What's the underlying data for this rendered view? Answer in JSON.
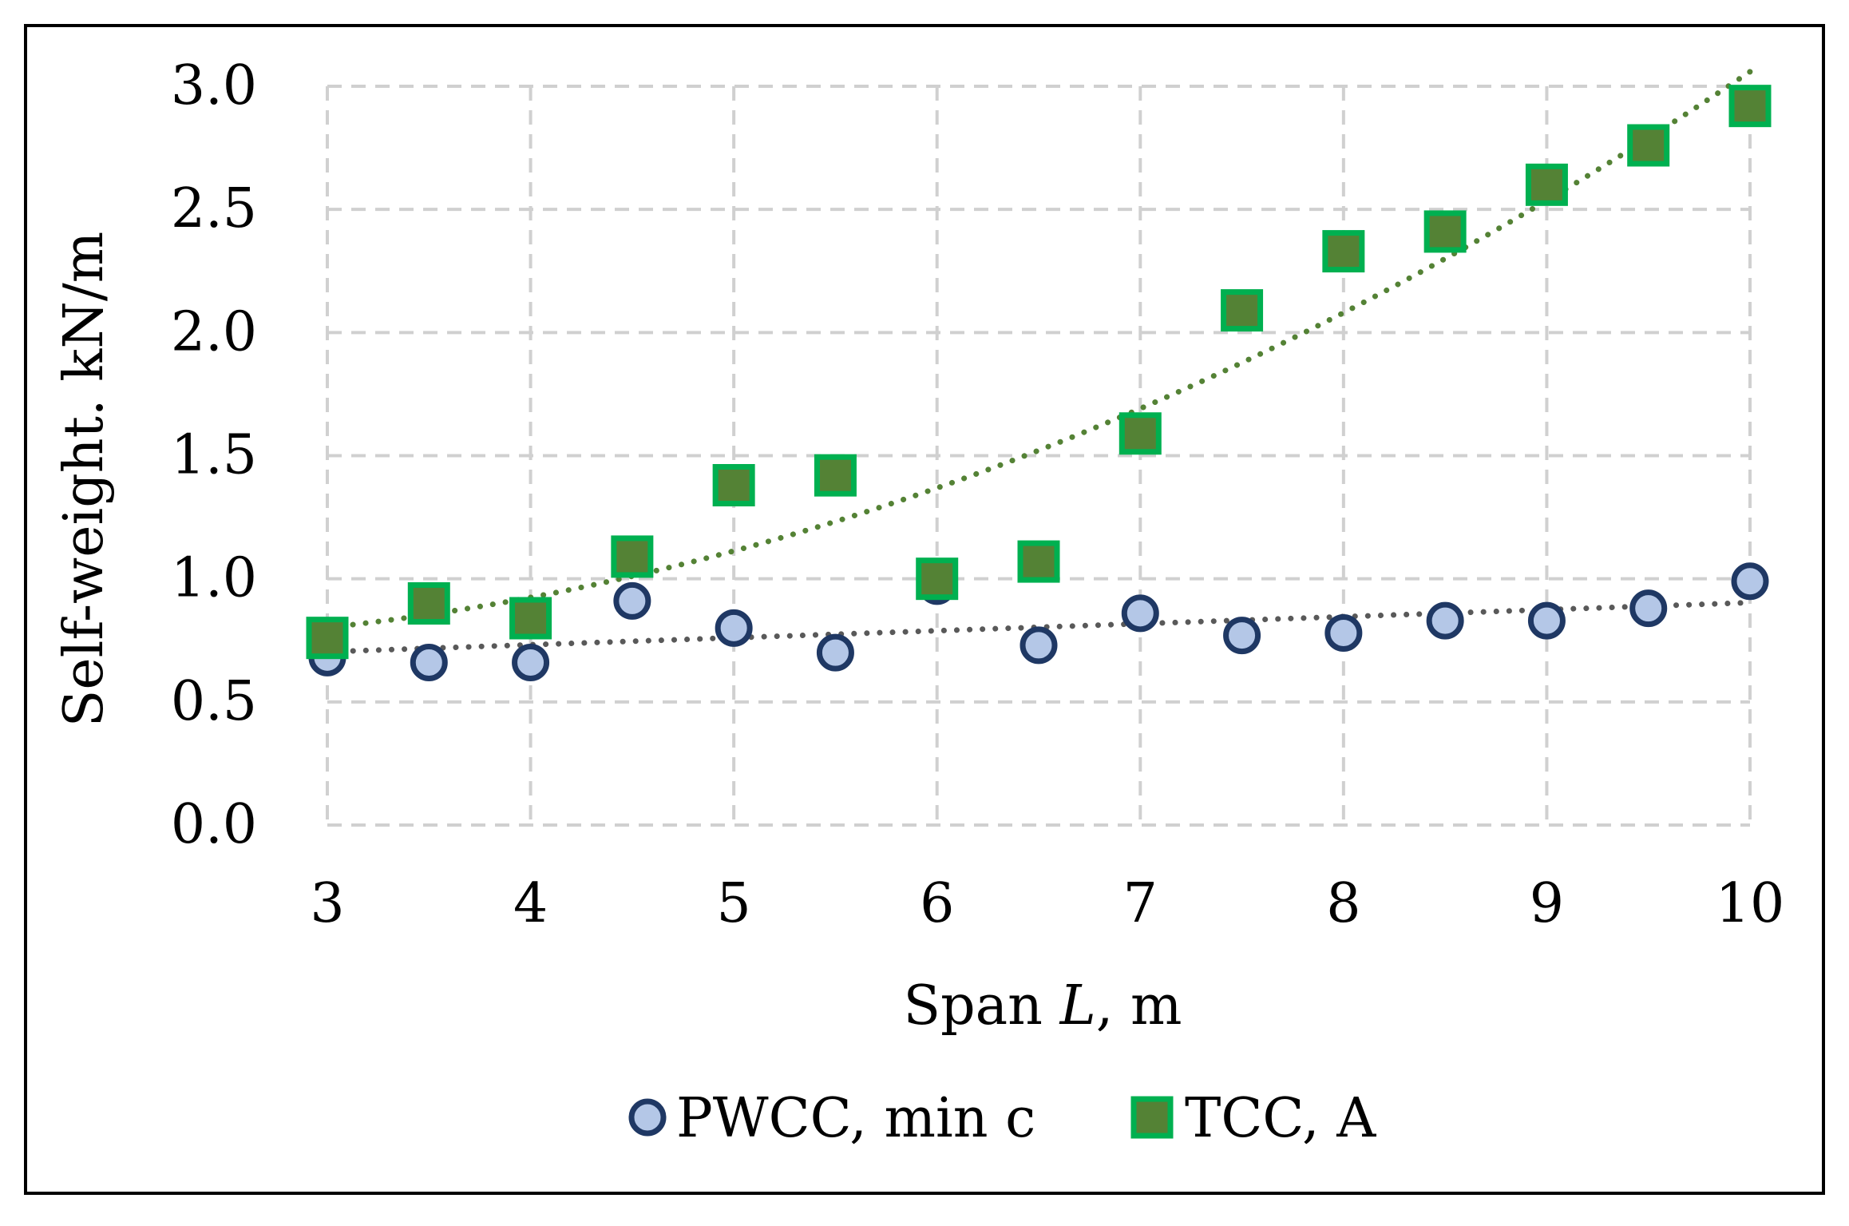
{
  "chart_data": {
    "type": "scatter",
    "title": "",
    "xlabel_prefix": "Span ",
    "xlabel_var": "L",
    "xlabel_suffix": ", m",
    "ylabel": "Self-weight. kN/m",
    "xlim": [
      3,
      10
    ],
    "ylim": [
      0,
      3
    ],
    "x_ticks": [
      "3",
      "4",
      "5",
      "6",
      "7",
      "8",
      "9",
      "10"
    ],
    "y_ticks": [
      "0.0",
      "0.5",
      "1.0",
      "1.5",
      "2.0",
      "2.5",
      "3.0"
    ],
    "grid": true,
    "legend_position": "bottom",
    "series": [
      {
        "name": "PWCC, min c",
        "marker": "circle",
        "fill": "#b4c7e7",
        "edge": "#1f3864",
        "trend_color": "#595959",
        "trend": "linear",
        "x": [
          3,
          3.5,
          4,
          4.5,
          5,
          5.5,
          6,
          6.5,
          7,
          7.5,
          8,
          8.5,
          9,
          9.5,
          10
        ],
        "values": [
          0.68,
          0.66,
          0.66,
          0.91,
          0.8,
          0.7,
          0.97,
          0.73,
          0.86,
          0.77,
          0.78,
          0.83,
          0.83,
          0.88,
          0.99
        ]
      },
      {
        "name": "TCC, A",
        "marker": "square",
        "fill": "#548235",
        "edge": "#00b050",
        "trend_color": "#548235",
        "trend": "poly2",
        "x": [
          3,
          3.5,
          4,
          4.5,
          5,
          5.5,
          6,
          6.5,
          7,
          7.5,
          8,
          8.5,
          9,
          9.5,
          10
        ],
        "values": [
          0.76,
          0.9,
          0.84,
          1.09,
          1.38,
          1.42,
          1.0,
          1.07,
          1.59,
          2.09,
          2.33,
          2.41,
          2.6,
          2.76,
          2.92
        ]
      }
    ]
  }
}
